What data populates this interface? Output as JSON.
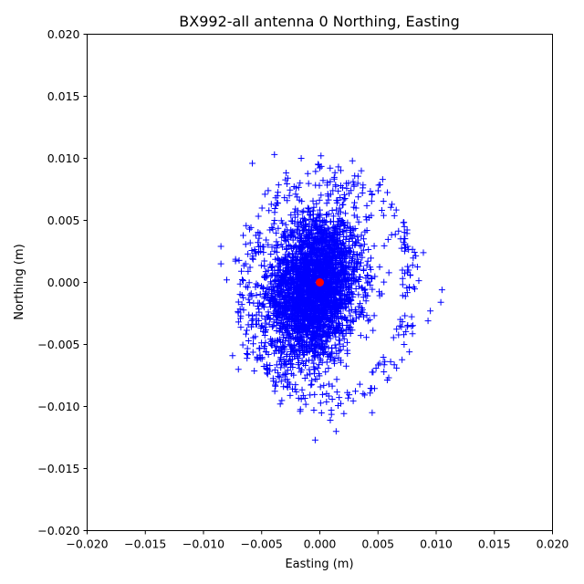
{
  "chart_data": {
    "type": "scatter",
    "title": "BX992-all antenna 0 Northing, Easting",
    "xlabel": "Easting (m)",
    "ylabel": "Northing (m)",
    "xlim": [
      -0.02,
      0.02
    ],
    "ylim": [
      -0.02,
      0.02
    ],
    "xticks": [
      "−0.020",
      "−0.015",
      "−0.010",
      "−0.005",
      "0.000",
      "0.005",
      "0.010",
      "0.015",
      "0.020"
    ],
    "yticks": [
      "−0.020",
      "−0.015",
      "−0.010",
      "−0.005",
      "0.000",
      "0.005",
      "0.010",
      "0.015",
      "0.020"
    ],
    "grid": false,
    "series": [
      {
        "marker": "+",
        "color": "#0000ff",
        "x_center": -0.0005,
        "y_center": -0.0005,
        "x_std": 0.0022,
        "y_std": 0.0033,
        "outliers": [
          {
            "x": -0.0085,
            "y": 0.0029
          },
          {
            "x": -0.0085,
            "y": 0.0015
          },
          {
            "x": -0.008,
            "y": 0.0002
          },
          {
            "x": 0.0105,
            "y": -0.0006
          },
          {
            "x": 0.0104,
            "y": -0.0016
          },
          {
            "x": 0.0095,
            "y": -0.0023
          },
          {
            "x": 0.0093,
            "y": -0.0031
          },
          {
            "x": 0.0089,
            "y": 0.0024
          },
          {
            "x": 0.0001,
            "y": 0.0102
          },
          {
            "x": -0.0004,
            "y": -0.0127
          },
          {
            "x": 0.0014,
            "y": -0.012
          },
          {
            "x": 0.0045,
            "y": -0.0105
          },
          {
            "x": 0.0028,
            "y": 0.0098
          },
          {
            "x": -0.0039,
            "y": 0.0103
          },
          {
            "x": -0.0034,
            "y": -0.0098
          },
          {
            "x": -0.007,
            "y": -0.007
          },
          {
            "x": -0.0075,
            "y": -0.0059
          },
          {
            "x": 0.0066,
            "y": -0.0069
          },
          {
            "x": 0.0077,
            "y": -0.0056
          },
          {
            "x": 0.0054,
            "y": 0.0083
          },
          {
            "x": 0.0062,
            "y": 0.0063
          },
          {
            "x": -0.0058,
            "y": 0.0096
          },
          {
            "x": 0.0009,
            "y": -0.0111
          },
          {
            "x": -0.0016,
            "y": 0.01
          }
        ]
      },
      {
        "marker": "o",
        "color": "#ff0000",
        "x": [
          0.0
        ],
        "y": [
          0.0
        ]
      }
    ]
  }
}
